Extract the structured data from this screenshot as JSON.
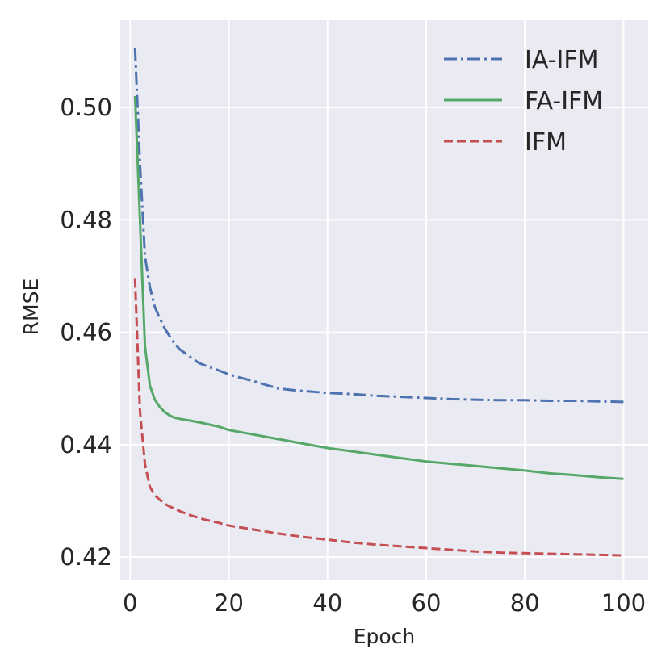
{
  "chart_data": {
    "type": "line",
    "title": "",
    "xlabel": "Epoch",
    "ylabel": "RMSE",
    "xlim": [
      -2,
      105
    ],
    "ylim": [
      0.416,
      0.5155
    ],
    "xticks": [
      0,
      20,
      40,
      60,
      80,
      100
    ],
    "xtick_labels": [
      "0",
      "20",
      "40",
      "60",
      "80",
      "100"
    ],
    "yticks": [
      0.42,
      0.44,
      0.46,
      0.48,
      0.5
    ],
    "ytick_labels": [
      "0.42",
      "0.44",
      "0.46",
      "0.48",
      "0.50"
    ],
    "grid": true,
    "legend_position": "top-right",
    "colors": {
      "background": "#eaeaf2",
      "grid": "#ffffff"
    },
    "series": [
      {
        "name": "IA-IFM",
        "color": "#4c72b0",
        "dash": "dash-dot",
        "points": [
          [
            1,
            0.5105
          ],
          [
            2,
            0.49
          ],
          [
            3,
            0.4735
          ],
          [
            4,
            0.468
          ],
          [
            5,
            0.4645
          ],
          [
            6,
            0.4625
          ],
          [
            7,
            0.4607
          ],
          [
            8,
            0.4593
          ],
          [
            9,
            0.458
          ],
          [
            10,
            0.457
          ],
          [
            12,
            0.4557
          ],
          [
            14,
            0.4545
          ],
          [
            16,
            0.4538
          ],
          [
            18,
            0.4532
          ],
          [
            20,
            0.4525
          ],
          [
            22,
            0.452
          ],
          [
            25,
            0.4513
          ],
          [
            28,
            0.4505
          ],
          [
            30,
            0.45
          ],
          [
            33,
            0.4497
          ],
          [
            36,
            0.4495
          ],
          [
            40,
            0.4492
          ],
          [
            45,
            0.449
          ],
          [
            50,
            0.4487
          ],
          [
            55,
            0.4485
          ],
          [
            60,
            0.4483
          ],
          [
            65,
            0.4481
          ],
          [
            70,
            0.448
          ],
          [
            75,
            0.4479
          ],
          [
            80,
            0.4479
          ],
          [
            85,
            0.4478
          ],
          [
            90,
            0.4478
          ],
          [
            95,
            0.4477
          ],
          [
            100,
            0.4476
          ]
        ]
      },
      {
        "name": "FA-IFM",
        "color": "#55a868",
        "dash": "solid",
        "points": [
          [
            1,
            0.502
          ],
          [
            2,
            0.48
          ],
          [
            3,
            0.4575
          ],
          [
            4,
            0.4505
          ],
          [
            5,
            0.448
          ],
          [
            6,
            0.4467
          ],
          [
            7,
            0.4458
          ],
          [
            8,
            0.4452
          ],
          [
            9,
            0.4448
          ],
          [
            10,
            0.4446
          ],
          [
            12,
            0.4443
          ],
          [
            15,
            0.4438
          ],
          [
            18,
            0.4432
          ],
          [
            20,
            0.4426
          ],
          [
            25,
            0.4418
          ],
          [
            30,
            0.441
          ],
          [
            35,
            0.4402
          ],
          [
            40,
            0.4394
          ],
          [
            45,
            0.4388
          ],
          [
            50,
            0.4382
          ],
          [
            55,
            0.4376
          ],
          [
            60,
            0.437
          ],
          [
            65,
            0.4366
          ],
          [
            70,
            0.4362
          ],
          [
            75,
            0.4358
          ],
          [
            80,
            0.4354
          ],
          [
            85,
            0.4349
          ],
          [
            90,
            0.4346
          ],
          [
            95,
            0.4342
          ],
          [
            100,
            0.4339
          ]
        ]
      },
      {
        "name": "IFM",
        "color": "#c44e52",
        "dash": "dashed",
        "points": [
          [
            1,
            0.4695
          ],
          [
            2,
            0.446
          ],
          [
            3,
            0.4365
          ],
          [
            4,
            0.4325
          ],
          [
            5,
            0.431
          ],
          [
            6,
            0.4302
          ],
          [
            7,
            0.4295
          ],
          [
            8,
            0.429
          ],
          [
            9,
            0.4286
          ],
          [
            10,
            0.4282
          ],
          [
            12,
            0.4275
          ],
          [
            15,
            0.4267
          ],
          [
            18,
            0.4261
          ],
          [
            20,
            0.4256
          ],
          [
            25,
            0.4249
          ],
          [
            30,
            0.4242
          ],
          [
            35,
            0.4236
          ],
          [
            40,
            0.4231
          ],
          [
            45,
            0.4226
          ],
          [
            50,
            0.4222
          ],
          [
            55,
            0.4219
          ],
          [
            60,
            0.4216
          ],
          [
            65,
            0.4213
          ],
          [
            70,
            0.421
          ],
          [
            75,
            0.4208
          ],
          [
            80,
            0.4207
          ],
          [
            85,
            0.4206
          ],
          [
            90,
            0.4205
          ],
          [
            95,
            0.4204
          ],
          [
            100,
            0.4203
          ]
        ]
      }
    ]
  }
}
